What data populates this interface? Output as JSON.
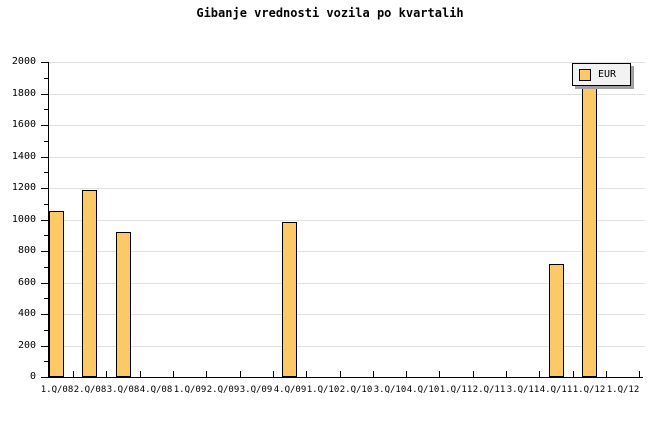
{
  "chart_data": {
    "type": "bar",
    "title": "Gibanje vrednosti vozila po kvartalih",
    "categories": [
      "1.Q/08",
      "2.Q/08",
      "3.Q/08",
      "4.Q/08",
      "1.Q/09",
      "2.Q/09",
      "3.Q/09",
      "4.Q/09",
      "1.Q/10",
      "2.Q/10",
      "3.Q/10",
      "4.Q/10",
      "1.Q/11",
      "2.Q/11",
      "3.Q/11",
      "4.Q/11",
      "1.Q/12",
      "1.Q/12"
    ],
    "series": [
      {
        "name": "EUR",
        "values": [
          1055,
          1185,
          920,
          null,
          null,
          null,
          null,
          985,
          null,
          null,
          null,
          null,
          null,
          null,
          null,
          720,
          1900,
          null
        ]
      }
    ],
    "ylim": [
      0,
      2000
    ],
    "y_ticks": [
      0,
      200,
      400,
      600,
      800,
      1000,
      1200,
      1400,
      1600,
      1800,
      2000
    ],
    "y_minor_step": 100,
    "xlabel": "",
    "ylabel": "",
    "grid": "horizontal",
    "legend_position": "top-right",
    "colors": {
      "bar_fill": "#FDC967",
      "bar_border": "#000000",
      "gridline": "#E0E0E0",
      "axis": "#000000",
      "legend_bg": "#F2F2F2",
      "legend_shadow": "#A0A0A0",
      "background": "#FFFFFF",
      "text": "#000000"
    }
  }
}
